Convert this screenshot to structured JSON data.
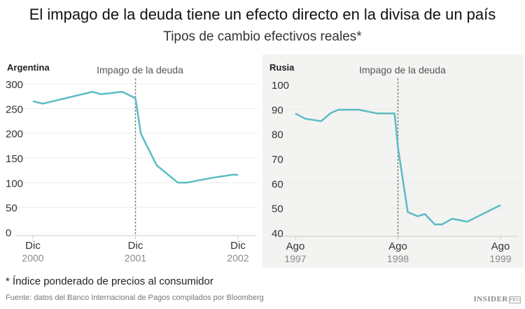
{
  "title": "El impago de la deuda tiene un efecto directo en la divisa de un país",
  "subtitle": "Tipos de cambio efectivos reales*",
  "footnote": "* Índice ponderado de precios al consumidor",
  "source": "Fuente: datos del Banco Internacional de Pagos compilados por Bloomberg",
  "logo": "INSIDER PRO",
  "colors": {
    "line": "#5bbcc4",
    "default_line": "#888888",
    "panel_bg": "#f3f3f1"
  },
  "chart_data": [
    {
      "type": "line",
      "title": "Argentina",
      "annotation": "Impago de la deuda",
      "annotation_x": "2001-12-01",
      "ylim": [
        0,
        300
      ],
      "yticks": [
        0,
        50,
        100,
        150,
        200,
        250,
        300
      ],
      "xticks": [
        {
          "date": "2000-12-01",
          "label": "Dic",
          "sub": "2000"
        },
        {
          "date": "2001-12-01",
          "label": "Dic",
          "sub": "2001"
        },
        {
          "date": "2002-12-01",
          "label": "Dic",
          "sub": "2002"
        }
      ],
      "grid": true,
      "x": [
        "2000-12-01",
        "2001-01-05",
        "2001-07-01",
        "2001-08-01",
        "2001-10-15",
        "2001-12-01",
        "2001-12-20",
        "2002-01-10",
        "2002-02-15",
        "2002-05-01",
        "2002-06-01",
        "2002-09-01",
        "2002-11-10",
        "2002-12-01"
      ],
      "values": [
        265,
        260,
        284,
        279,
        284,
        271,
        200,
        175,
        135,
        100,
        100,
        110,
        116,
        116
      ]
    },
    {
      "type": "line",
      "title": "Rusia",
      "annotation": "Impago de la deuda",
      "annotation_x": "1998-08-01",
      "ylim": [
        40,
        100
      ],
      "yticks": [
        40,
        50,
        60,
        70,
        80,
        90,
        100
      ],
      "xticks": [
        {
          "date": "1997-08-01",
          "label": "Ago",
          "sub": "1997"
        },
        {
          "date": "1998-08-01",
          "label": "Ago",
          "sub": "1998"
        },
        {
          "date": "1999-08-01",
          "label": "Ago",
          "sub": "1999"
        }
      ],
      "grid": true,
      "x": [
        "1997-08-01",
        "1997-09-05",
        "1997-11-01",
        "1997-12-05",
        "1998-01-01",
        "1998-03-15",
        "1998-05-20",
        "1998-07-20",
        "1998-08-01",
        "1998-09-05",
        "1998-10-10",
        "1998-11-05",
        "1998-12-10",
        "1999-01-05",
        "1999-02-10",
        "1999-04-05",
        "1999-08-01"
      ],
      "values": [
        88.3,
        86.2,
        85.2,
        88.5,
        89.8,
        89.8,
        88.3,
        88.3,
        74.6,
        48.4,
        46.7,
        47.6,
        43.4,
        43.4,
        45.7,
        44.5,
        51.2
      ]
    }
  ]
}
